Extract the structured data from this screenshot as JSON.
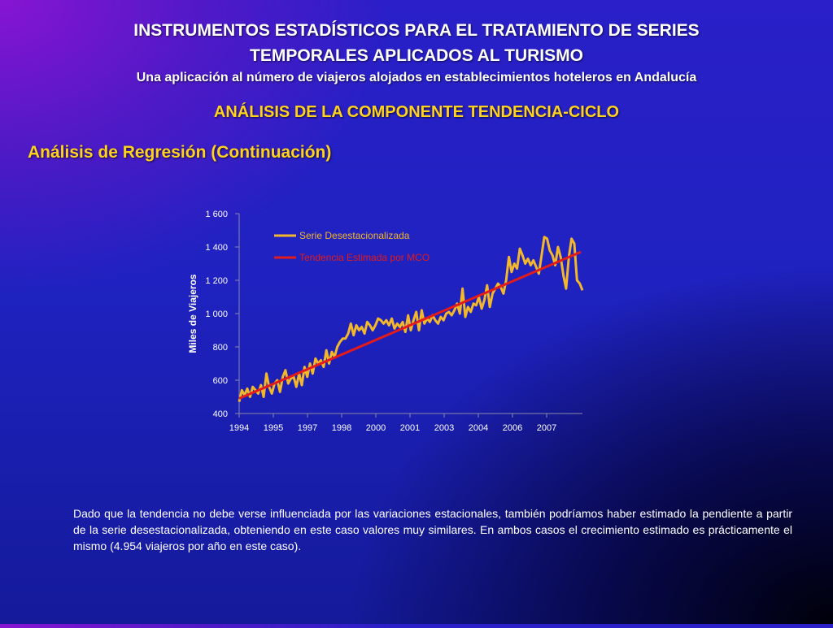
{
  "header": {
    "title_line1": "INSTRUMENTOS ESTADÍSTICOS PARA EL TRATAMIENTO DE SERIES",
    "title_line2": "TEMPORALES APLICADOS AL TURISMO",
    "subtitle": "Una aplicación al número de viajeros alojados en establecimientos hoteleros en Andalucía"
  },
  "section_title": "ANÁLISIS DE LA COMPONENTE TENDENCIA-CICLO",
  "subsection_title": "Análisis de Regresión (Continuación)",
  "body_text": "Dado que la tendencia no debe verse influenciada por las variaciones estacionales, también podríamos haber estimado la pendiente a partir de la serie desestacionalizada, obteniendo en este caso valores muy similares. En ambos casos el crecimiento estimado es prácticamente el mismo (4.954 viajeros por año en este caso).",
  "colors": {
    "series_line": "#f2b72a",
    "trend_line": "#e21b1b",
    "axis": "#8a8aa8",
    "tick_text": "#ffffff",
    "legend_series_text": "#f2b72a",
    "legend_trend_text": "#e21b1b",
    "title": "#ffffff",
    "section_title": "#ffd21f"
  },
  "chart_data": {
    "type": "line",
    "ylabel": "Miles de Viajeros",
    "xlabel": "",
    "ylim": [
      400,
      1600
    ],
    "yticks": [
      "400",
      "600",
      "800",
      "1 000",
      "1 200",
      "1 400",
      "1 600"
    ],
    "ytick_values": [
      400,
      600,
      800,
      1000,
      1200,
      1400,
      1600
    ],
    "xticks": [
      "1994",
      "1995",
      "1997",
      "1998",
      "2000",
      "2001",
      "2003",
      "2004",
      "2006",
      "2007"
    ],
    "grid": false,
    "legend": "top-left",
    "series": [
      {
        "name": "Serie Desestacionalizada",
        "values": [
          470,
          540,
          510,
          550,
          500,
          560,
          540,
          520,
          570,
          500,
          640,
          560,
          520,
          580,
          600,
          530,
          620,
          660,
          580,
          610,
          620,
          560,
          640,
          570,
          680,
          620,
          700,
          640,
          730,
          700,
          720,
          680,
          780,
          700,
          770,
          740,
          800,
          830,
          850,
          850,
          880,
          940,
          870,
          930,
          900,
          920,
          880,
          950,
          930,
          900,
          930,
          970,
          960,
          940,
          960,
          930,
          970,
          910,
          940,
          920,
          950,
          890,
          990,
          900,
          960,
          1010,
          900,
          1020,
          940,
          970,
          950,
          990,
          960,
          940,
          980,
          960,
          1000,
          1010,
          990,
          1020,
          1060,
          1000,
          1150,
          980,
          1040,
          1010,
          1060,
          1050,
          1100,
          1030,
          1080,
          1170,
          1040,
          1120,
          1150,
          1180,
          1160,
          1120,
          1200,
          1340,
          1250,
          1300,
          1270,
          1390,
          1350,
          1300,
          1330,
          1290,
          1320,
          1280,
          1240,
          1350,
          1460,
          1450,
          1380,
          1350,
          1290,
          1400,
          1340,
          1230,
          1150,
          1340,
          1450,
          1420,
          1200,
          1180,
          1140
        ]
      },
      {
        "name": "Tendencia Estimada por MCO",
        "values": [
          490,
          1370
        ]
      }
    ]
  }
}
